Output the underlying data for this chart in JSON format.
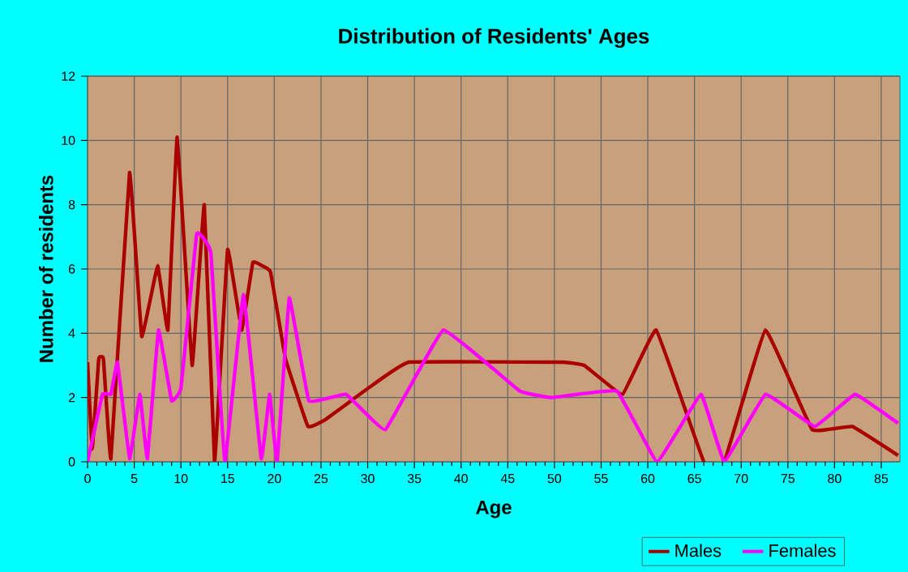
{
  "chart_data": {
    "type": "line",
    "title": "Distribution of Residents' Ages",
    "xlabel": "Age",
    "ylabel": "Number of residents",
    "xlim": [
      0,
      87
    ],
    "xticks": [
      0,
      5,
      10,
      15,
      20,
      25,
      30,
      35,
      40,
      45,
      50,
      55,
      60,
      65,
      70,
      75,
      80,
      85
    ],
    "ylim": [
      0,
      12
    ],
    "yticks": [
      0,
      2,
      4,
      6,
      8,
      10,
      12
    ],
    "grid": true,
    "legend": "bottom right",
    "series": [
      {
        "name": "Males",
        "color": "#aa0000",
        "x": [
          0,
          0.5,
          1.2,
          1.7,
          2.5,
          4.5,
          5.8,
          7.5,
          8.6,
          9.6,
          11.2,
          12.5,
          13.6,
          15,
          16.5,
          17.7,
          18.7,
          19.6,
          21.2,
          23.6,
          25.4,
          30.1,
          34.4,
          50.9,
          53.2,
          57.3,
          60.9,
          66,
          68.2,
          72.6,
          77.6,
          81.9,
          86.8
        ],
        "values": [
          3.1,
          0.4,
          3.2,
          3.2,
          0.1,
          9.0,
          3.9,
          6.1,
          4.1,
          10.1,
          3.0,
          8.0,
          0.0,
          6.6,
          4.1,
          6.2,
          6.1,
          5.9,
          3.2,
          1.1,
          1.3,
          2.3,
          3.1,
          3.1,
          3.0,
          2.1,
          4.1,
          0,
          0,
          4.1,
          1.0,
          1.1,
          0.2
        ]
      },
      {
        "name": "Females",
        "color": "#ff00ff",
        "x": [
          0,
          1.6,
          2.5,
          3.2,
          4.5,
          5.6,
          6.4,
          7.6,
          9.0,
          10.0,
          11.7,
          13.2,
          14.7,
          16.7,
          18.6,
          19.5,
          20.3,
          21.6,
          23.7,
          27.7,
          31.9,
          38.1,
          46.3,
          49.7,
          56.7,
          61.0,
          65.7,
          68.2,
          72.6,
          77.9,
          82.2,
          86.8
        ],
        "values": [
          0,
          2.1,
          2.1,
          3.1,
          0.1,
          2.1,
          0.1,
          4.1,
          1.9,
          2.3,
          7.1,
          6.5,
          0,
          5.2,
          0.1,
          2.1,
          0,
          5.1,
          1.9,
          2.1,
          1.0,
          4.1,
          2.2,
          2.0,
          2.2,
          0,
          2.1,
          0,
          2.1,
          1.1,
          2.1,
          1.2
        ]
      }
    ]
  }
}
